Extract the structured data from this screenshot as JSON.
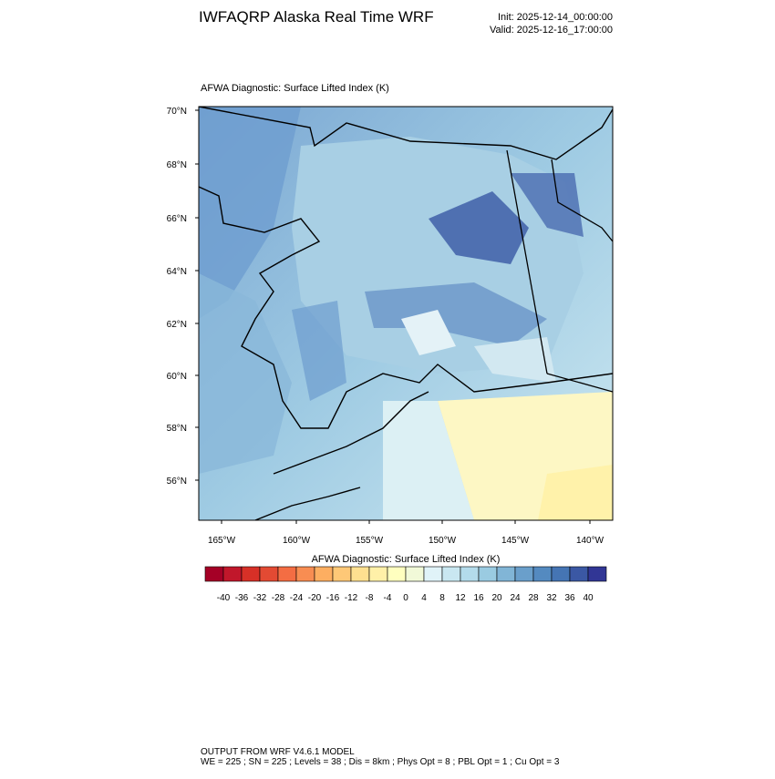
{
  "header": {
    "title": "IWFAQRP Alaska Real Time WRF",
    "init": "Init: 2025-12-14_00:00:00",
    "valid": "Valid: 2025-12-16_17:00:00"
  },
  "map": {
    "title": "AFWA Diagnostic: Surface Lifted Index   (K)",
    "lat_labels": [
      "70°N",
      "68°N",
      "66°N",
      "64°N",
      "62°N",
      "60°N",
      "58°N",
      "56°N"
    ],
    "lon_labels": [
      "165°W",
      "160°W",
      "155°W",
      "150°W",
      "145°W",
      "140°W"
    ]
  },
  "colorbar": {
    "title": "AFWA Diagnostic: Surface Lifted Index  (K)",
    "levels": [
      -40,
      -36,
      -32,
      -28,
      -24,
      -20,
      -16,
      -12,
      -8,
      -4,
      0,
      4,
      8,
      12,
      16,
      20,
      24,
      28,
      32,
      36,
      40
    ],
    "colors": [
      "#a50026",
      "#c1172b",
      "#d73027",
      "#e34a33",
      "#f46d43",
      "#f88d52",
      "#fdae61",
      "#fec877",
      "#fee090",
      "#fff0a8",
      "#ffffbf",
      "#f1f9d8",
      "#e0f3f8",
      "#c9e7f1",
      "#b3dbeb",
      "#9acbe1",
      "#81b5d6",
      "#6a9fcb",
      "#548ac0",
      "#4575b4",
      "#3b58a4",
      "#313695"
    ]
  },
  "footer": {
    "line1": "OUTPUT FROM WRF V4.6.1 MODEL",
    "line2": "WE = 225 ; SN = 225 ; Levels = 38 ; Dis = 8km ; Phys Opt = 8 ; PBL Opt = 1 ; Cu Opt = 3"
  }
}
